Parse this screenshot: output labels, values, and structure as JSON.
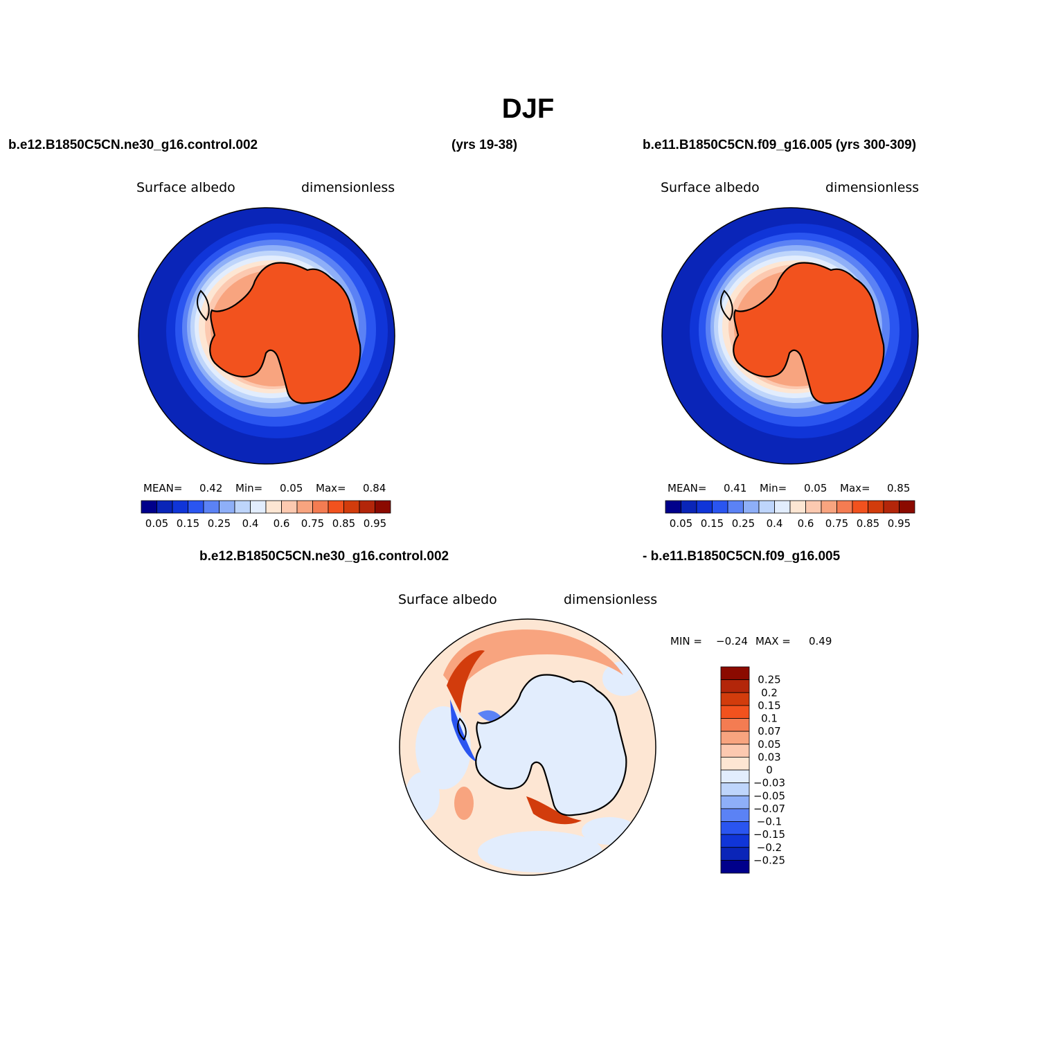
{
  "title": "DJF",
  "header": {
    "left_case": "b.e12.B1850C5CN.ne30_g16.control.002",
    "left_years": "(yrs 19-38)",
    "right_case": "b.e11.B1850C5CN.f09_g16.005 (yrs 300-309)",
    "diff_case_a": "b.e12.B1850C5CN.ne30_g16.control.002",
    "diff_case_b": "- b.e11.B1850C5CN.f09_g16.005"
  },
  "panels": [
    {
      "variable": "Surface albedo",
      "units": "dimensionless",
      "mean_label": "MEAN=",
      "mean": "0.42",
      "min_label": "Min=",
      "min": "0.05",
      "max_label": "Max=",
      "max": "0.84"
    },
    {
      "variable": "Surface albedo",
      "units": "dimensionless",
      "mean_label": "MEAN=",
      "mean": "0.41",
      "min_label": "Min=",
      "min": "0.05",
      "max_label": "Max=",
      "max": "0.85"
    },
    {
      "variable": "Surface albedo",
      "units": "dimensionless",
      "min_label": "MIN =",
      "min": "−0.24",
      "max_label": "MAX =",
      "max": "0.49"
    }
  ],
  "colorbar_abs": {
    "colors": [
      "#00008b",
      "#0a25b8",
      "#1035d8",
      "#2a55f0",
      "#5b82f5",
      "#8eaff8",
      "#bed5fb",
      "#e2edfd",
      "#fde6d3",
      "#fcc9b0",
      "#f8a47f",
      "#f47c52",
      "#f2521e",
      "#d23c0c",
      "#b3260a",
      "#8b0a00"
    ],
    "tick_labels": [
      "0.05",
      "0.15",
      "0.25",
      "0.4",
      "0.6",
      "0.75",
      "0.85",
      "0.95"
    ]
  },
  "colorbar_diff": {
    "colors": [
      "#8b0a00",
      "#b3260a",
      "#d23c0c",
      "#f2521e",
      "#f47c52",
      "#f8a47f",
      "#fcc9b0",
      "#fde6d3",
      "#e2edfd",
      "#bed5fb",
      "#8eaff8",
      "#5b82f5",
      "#2a55f0",
      "#1035d8",
      "#0a25b8",
      "#00008b"
    ],
    "tick_labels": [
      "0.25",
      "0.2",
      "0.15",
      "0.1",
      "0.07",
      "0.05",
      "0.03",
      "0",
      "−0.03",
      "−0.05",
      "−0.07",
      "−0.1",
      "−0.15",
      "−0.2",
      "−0.25"
    ]
  }
}
